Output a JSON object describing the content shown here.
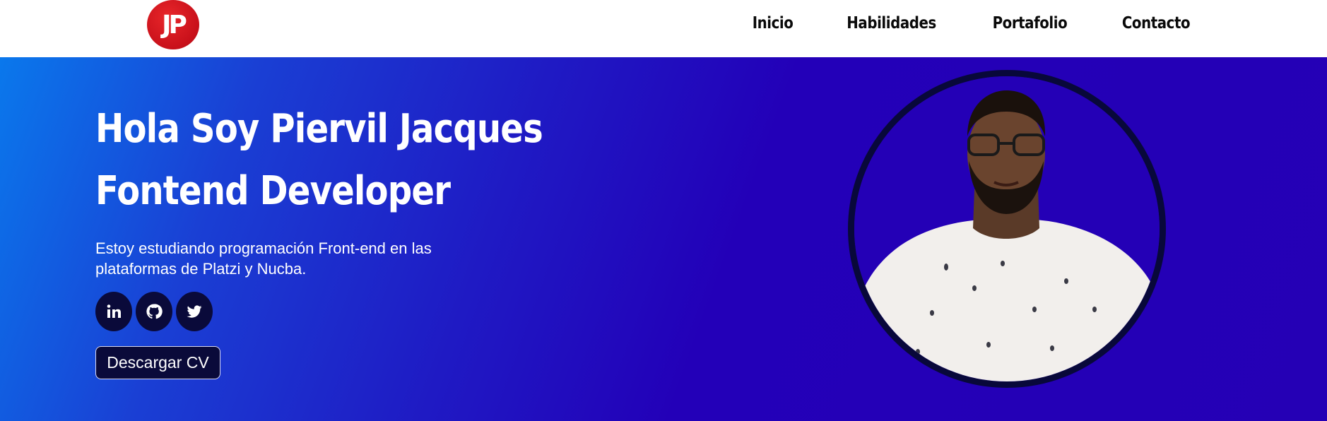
{
  "header": {
    "logo_text": "JP",
    "nav": [
      {
        "label": "Inicio"
      },
      {
        "label": "Habilidades"
      },
      {
        "label": "Portafolio"
      },
      {
        "label": "Contacto"
      }
    ]
  },
  "hero": {
    "title_line1": "Hola Soy Piervil Jacques",
    "title_line2": "Fontend Developer",
    "description": "Estoy estudiando programación Front-end en las plataformas de Platzi y Nucba.",
    "socials": [
      {
        "icon": "linkedin-icon"
      },
      {
        "icon": "github-icon"
      },
      {
        "icon": "twitter-icon"
      }
    ],
    "cv_label": "Descargar CV"
  },
  "colors": {
    "gradient_start": "#0a78ec",
    "gradient_end": "#2500b5",
    "button_bg": "#0a0a3a",
    "logo_red": "#c8101a"
  }
}
